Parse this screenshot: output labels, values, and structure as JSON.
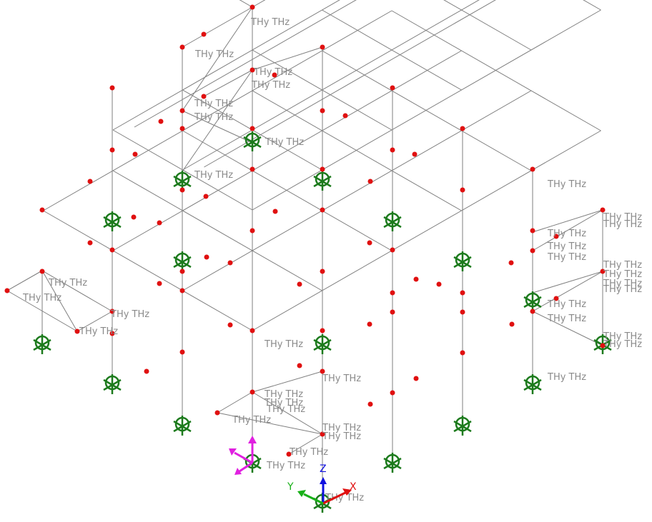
{
  "model_view": {
    "release_label": "THy THz",
    "label_color": "#8a8a8a",
    "member_color": "#7f7f7f",
    "node_color": "#e01010",
    "support_color": "#1c7a1c"
  },
  "axis_triad": {
    "x_label": "X",
    "y_label": "Y",
    "z_label": "Z",
    "x_color": "#e01010",
    "y_color": "#18b018",
    "z_color": "#1010e0"
  },
  "load_gizmo": {
    "color": "#e020e0"
  }
}
